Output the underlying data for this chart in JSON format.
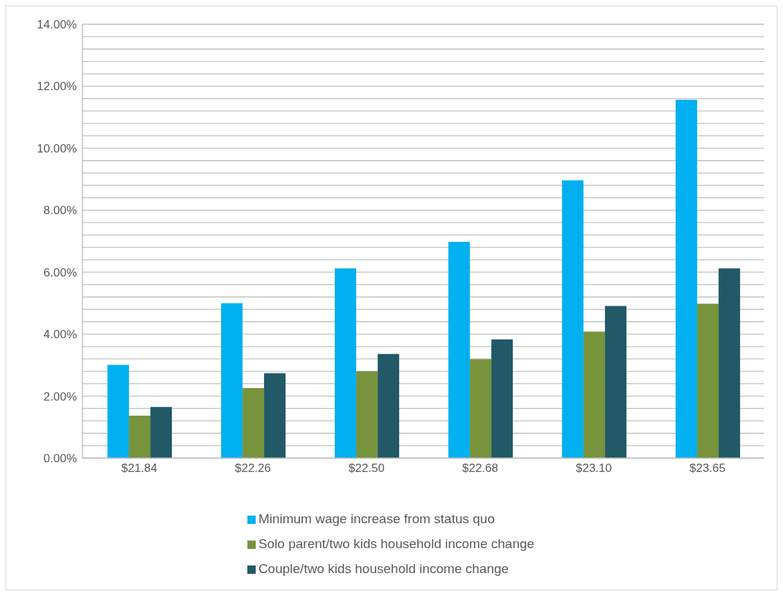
{
  "chart_data": {
    "type": "bar",
    "categories": [
      "$21.84",
      "$22.26",
      "$22.50",
      "$22.68",
      "$23.10",
      "$23.65"
    ],
    "series": [
      {
        "name": "Minimum wage increase from status quo",
        "color": "#00b0f0",
        "values": [
          3.01,
          5.0,
          6.12,
          6.98,
          8.96,
          11.56
        ]
      },
      {
        "name": "Solo parent/two kids household income change",
        "color": "#77933c",
        "values": [
          1.37,
          2.26,
          2.8,
          3.19,
          4.08,
          4.98
        ]
      },
      {
        "name": "Couple/two kids household income change",
        "color": "#215967",
        "values": [
          1.65,
          2.74,
          3.36,
          3.83,
          4.91,
          6.12
        ]
      }
    ],
    "ylim": [
      0,
      14
    ],
    "yticks": [
      {
        "value": 0,
        "label": "0.00%"
      },
      {
        "value": 0.4,
        "label": null
      },
      {
        "value": 0.8,
        "label": null
      },
      {
        "value": 1.2,
        "label": null
      },
      {
        "value": 1.6,
        "label": null
      },
      {
        "value": 2,
        "label": "2.00%"
      },
      {
        "value": 2.4,
        "label": null
      },
      {
        "value": 2.8,
        "label": null
      },
      {
        "value": 3.2,
        "label": null
      },
      {
        "value": 3.6,
        "label": null
      },
      {
        "value": 4,
        "label": "4.00%"
      },
      {
        "value": 4.4,
        "label": null
      },
      {
        "value": 4.8,
        "label": null
      },
      {
        "value": 5.2,
        "label": null
      },
      {
        "value": 5.6,
        "label": null
      },
      {
        "value": 6,
        "label": "6.00%"
      },
      {
        "value": 6.4,
        "label": null
      },
      {
        "value": 6.8,
        "label": null
      },
      {
        "value": 7.2,
        "label": null
      },
      {
        "value": 7.6,
        "label": null
      },
      {
        "value": 8,
        "label": "8.00%"
      },
      {
        "value": 8.4,
        "label": null
      },
      {
        "value": 8.8,
        "label": null
      },
      {
        "value": 9.2,
        "label": null
      },
      {
        "value": 9.6,
        "label": null
      },
      {
        "value": 10,
        "label": "10.00%"
      },
      {
        "value": 10.4,
        "label": null
      },
      {
        "value": 10.8,
        "label": null
      },
      {
        "value": 11.2,
        "label": null
      },
      {
        "value": 11.6,
        "label": null
      },
      {
        "value": 12,
        "label": "12.00%"
      },
      {
        "value": 12.4,
        "label": null
      },
      {
        "value": 12.8,
        "label": null
      },
      {
        "value": 13.2,
        "label": null
      },
      {
        "value": 13.6,
        "label": null
      },
      {
        "value": 14,
        "label": "14.00%"
      }
    ],
    "grid": "y",
    "legend": "bottom"
  }
}
